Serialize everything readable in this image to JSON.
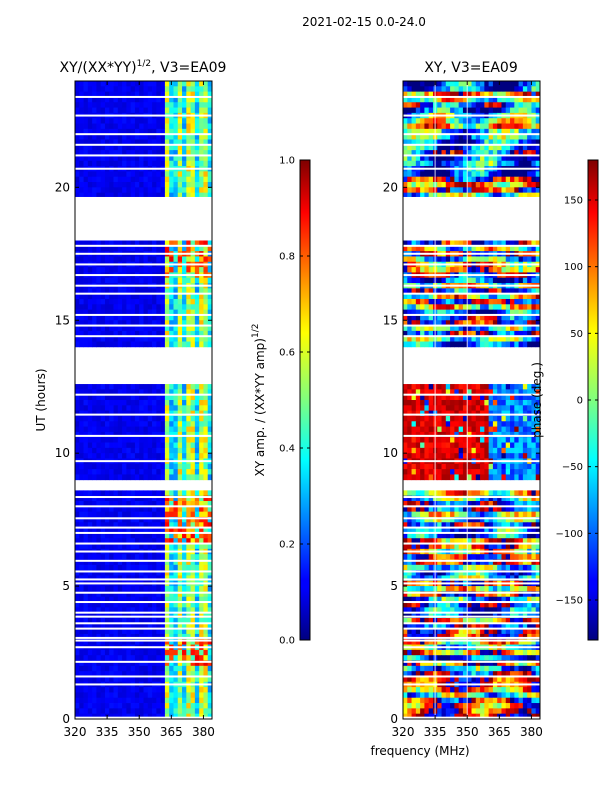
{
  "chart_data": [
    {
      "type": "heatmap",
      "suptitle": "2021-02-15 0.0-24.0",
      "title": "XY/(XX*YY)",
      "title_sup": "1/2",
      "title_suffix": ", V3=EA09",
      "ylabel": "UT (hours)",
      "xlabel": "frequency (MHz)",
      "xlim": [
        320,
        384
      ],
      "ylim": [
        0,
        24
      ],
      "x_ticks": [
        320,
        335,
        350,
        365,
        380
      ],
      "y_ticks": [
        0,
        5,
        10,
        15,
        20
      ],
      "gaps_hours": [
        [
          18.1,
          19.5
        ],
        [
          12.6,
          14.0
        ],
        [
          8.7,
          8.9
        ]
      ],
      "colorbar": {
        "label": "XY amp. / (XX*YY amp)",
        "label_sup": "1/2",
        "ticks": [
          "0.0",
          "0.2",
          "0.4",
          "0.6",
          "0.8",
          "1.0"
        ],
        "range": [
          0,
          1
        ],
        "colormap": "jet"
      }
    },
    {
      "type": "heatmap",
      "title": "XY, V3=EA09",
      "xlabel": "frequency (MHz)",
      "xlim": [
        320,
        384
      ],
      "ylim": [
        0,
        24
      ],
      "x_ticks": [
        320,
        335,
        350,
        365,
        380
      ],
      "y_ticks": [
        0,
        5,
        10,
        15,
        20
      ],
      "gaps_hours": [
        [
          18.1,
          19.5
        ],
        [
          12.6,
          14.0
        ],
        [
          8.7,
          8.9
        ]
      ],
      "colorbar": {
        "label": "phase (deg.)",
        "ticks": [
          "150",
          "100",
          "50",
          "0",
          "−50",
          "−100",
          "−150"
        ],
        "range": [
          -180,
          180
        ],
        "colormap": "jet"
      }
    }
  ]
}
